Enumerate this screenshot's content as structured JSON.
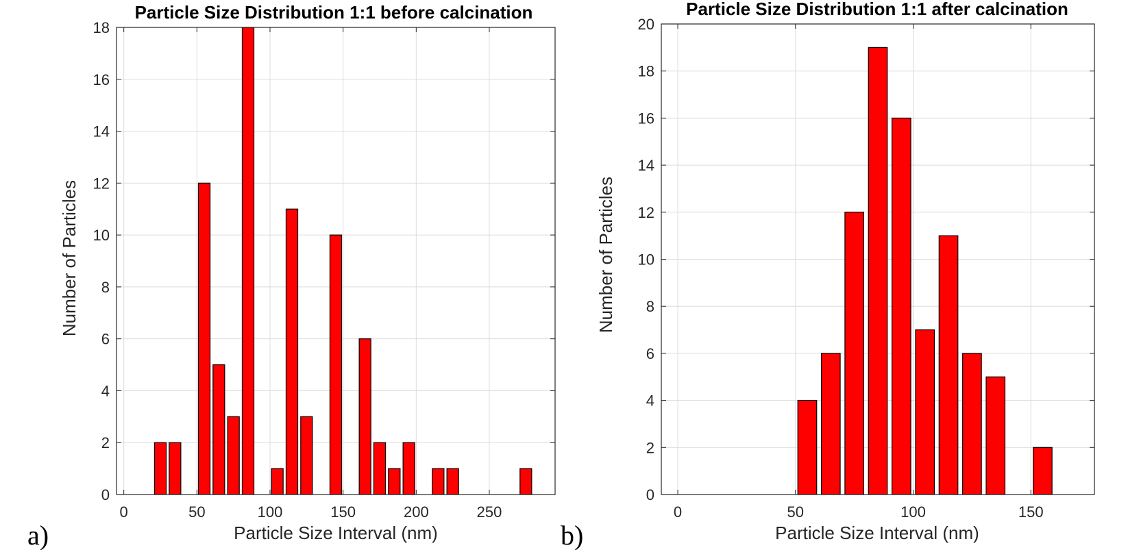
{
  "panels": [
    {
      "panel_label": "a)",
      "chart_data": {
        "type": "bar",
        "title": "Particle Size Distribution 1:1 before calcination",
        "xlabel": "Particle Size Interval (nm)",
        "ylabel": "Number of Particles",
        "x": [
          5,
          15,
          25,
          35,
          45,
          55,
          65,
          75,
          85,
          95,
          105,
          115,
          125,
          135,
          145,
          155,
          165,
          175,
          185,
          195,
          205,
          215,
          225,
          235,
          245,
          255,
          265,
          275,
          285
        ],
        "values": [
          0,
          0,
          2,
          2,
          0,
          12,
          5,
          3,
          18,
          0,
          1,
          11,
          3,
          0,
          10,
          0,
          6,
          2,
          1,
          2,
          0,
          1,
          1,
          0,
          0,
          0,
          0,
          1,
          0
        ],
        "bar_width": 8,
        "xlim": [
          -5,
          295
        ],
        "ylim": [
          0,
          18
        ],
        "xticks": [
          0,
          50,
          100,
          150,
          200,
          250
        ],
        "yticks": [
          0,
          2,
          4,
          6,
          8,
          10,
          12,
          14,
          16,
          18
        ],
        "grid": true,
        "bar_color": "#ff0000",
        "edge_color": "#000000"
      }
    },
    {
      "panel_label": "b)",
      "chart_data": {
        "type": "bar",
        "title": "Particle Size Distribution 1:1 after calcination",
        "xlabel": "Particle Size Interval (nm)",
        "ylabel": "Number of Particles",
        "x": [
          55,
          65,
          75,
          85,
          95,
          105,
          115,
          125,
          135,
          145,
          155
        ],
        "values": [
          4,
          6,
          12,
          19,
          16,
          7,
          11,
          6,
          5,
          0,
          2
        ],
        "bar_width": 8,
        "xlim": [
          -7,
          177
        ],
        "ylim": [
          0,
          20
        ],
        "xticks": [
          0,
          50,
          100,
          150
        ],
        "yticks": [
          0,
          2,
          4,
          6,
          8,
          10,
          12,
          14,
          16,
          18,
          20
        ],
        "grid": true,
        "bar_color": "#ff0000",
        "edge_color": "#000000"
      }
    }
  ]
}
